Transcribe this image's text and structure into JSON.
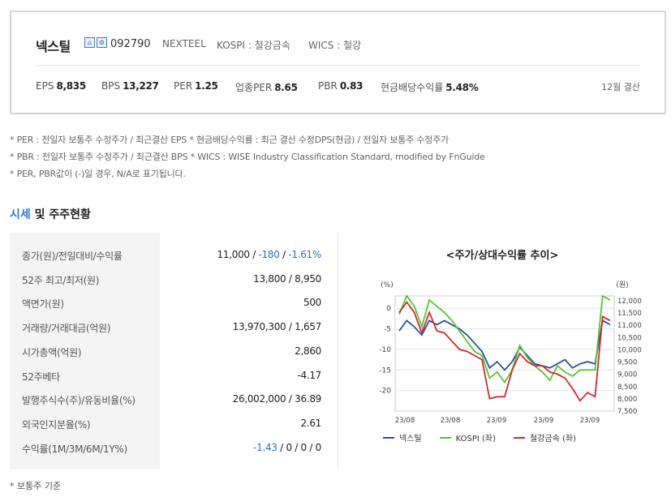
{
  "company": {
    "name": "넥스틸",
    "icons": [
      "building-icon",
      "settings-icon"
    ],
    "code": "092790",
    "english_name": "NEXTEEL",
    "market": "KOSPI : 철강금속",
    "wics": "WICS : 철강"
  },
  "metrics": [
    {
      "label": "EPS",
      "value": "8,835"
    },
    {
      "label": "BPS",
      "value": "13,227"
    },
    {
      "label": "PER",
      "value": "1.25"
    },
    {
      "label": "업종PER",
      "value": "8.65"
    },
    {
      "label": "PBR",
      "value": "0.83"
    },
    {
      "label": "현금배당수익률",
      "value": "5.48%"
    }
  ],
  "settlement": "12월 결산",
  "notes": [
    "* PER : 전일자 보통주 수정주가 / 최근결산 EPS * 현금배당수익률 : 최근 결산 수정DPS(현금) / 전일자 보통주 수정주가",
    "* PBR : 전일자 보통주 수정주가 / 최근결산 BPS * WICS : WISE Industry Classification Standard, modified by FnGuide",
    "* PER, PBR값이 (-)일 경우, N/A로 표기됩니다."
  ],
  "section": {
    "accent": "시세",
    "rest": " 및 주주현황"
  },
  "table_rows": [
    {
      "label": "종가(원)/전일대비/수익률",
      "parts": [
        {
          "t": "11,000 / ",
          "c": ""
        },
        {
          "t": "-180",
          "c": "blue"
        },
        {
          "t": " / ",
          "c": ""
        },
        {
          "t": "-1.61%",
          "c": "blue"
        }
      ]
    },
    {
      "label": "52주 최고/최저(원)",
      "parts": [
        {
          "t": "13,800 / 8,950",
          "c": ""
        }
      ]
    },
    {
      "label": "액면가(원)",
      "parts": [
        {
          "t": "500",
          "c": ""
        }
      ]
    },
    {
      "label": "거래량/거래대금(억원)",
      "parts": [
        {
          "t": "13,970,300 / 1,657",
          "c": ""
        }
      ]
    },
    {
      "label": "시가총액(억원)",
      "parts": [
        {
          "t": "2,860",
          "c": ""
        }
      ]
    },
    {
      "label": "52주베타",
      "parts": [
        {
          "t": "-4.17",
          "c": ""
        }
      ]
    },
    {
      "label": "발행주식수(주)/유동비율(%)",
      "parts": [
        {
          "t": "26,002,000 / 36.89",
          "c": ""
        }
      ]
    },
    {
      "label": "외국인지분율(%)",
      "parts": [
        {
          "t": "2.61",
          "c": ""
        }
      ]
    },
    {
      "label": "수익률(1M/3M/6M/1Y%)",
      "parts": [
        {
          "t": "-1.43",
          "c": "blue"
        },
        {
          "t": " / 0 / 0 / 0",
          "c": ""
        }
      ]
    }
  ],
  "chart_data": {
    "type": "line",
    "title": "<주가/상대수익률 추이>",
    "left_unit": "(%)",
    "right_unit": "(원)",
    "x_ticks": [
      "23/08",
      "23/08",
      "23/09",
      "23/09",
      "23/09"
    ],
    "ylim_left": [
      -25,
      3
    ],
    "yticks_left": [
      0,
      -5,
      -10,
      -15,
      -20
    ],
    "ylim_right": [
      7500,
      12000
    ],
    "yticks_right": [
      "12,000",
      "11,500",
      "11,000",
      "10,500",
      "10,000",
      "9,500",
      "9,000",
      "8,500",
      "8,000",
      "7,500"
    ],
    "series": [
      {
        "name": "넥스틸",
        "color": "#2b4fa0",
        "axis": "left",
        "values": [
          -5.5,
          -3,
          -4.5,
          -6.5,
          -3,
          -4,
          -3,
          -4,
          -5,
          -6.5,
          -8.5,
          -10.5,
          -14.5,
          -13,
          -15,
          -13,
          -9.5,
          -11.5,
          -13.5,
          -14,
          -14.5,
          -13.5,
          -12.5,
          -14.5,
          -13.5,
          -13,
          -13.5,
          -3,
          -4
        ]
      },
      {
        "name": "KOSPI (좌)",
        "color": "#5cc238",
        "axis": "left",
        "values": [
          -1.5,
          3,
          0.5,
          -4.5,
          2,
          0.5,
          -1,
          -3,
          -5.5,
          -8,
          -10.5,
          -11.5,
          -17,
          -15.5,
          -18,
          -15,
          -9,
          -12,
          -14,
          -15.5,
          -17.5,
          -14,
          -15.5,
          -16.5,
          -15,
          -15,
          -15,
          3,
          2
        ]
      },
      {
        "name": "철강금속 (좌)",
        "color": "#c9302c",
        "axis": "left",
        "values": [
          -1,
          1.5,
          -1,
          -6,
          -1,
          -5.5,
          -6,
          -8,
          -10,
          -10.5,
          -11.5,
          -12.5,
          -22,
          -21.5,
          -21.5,
          -15,
          -11,
          -13,
          -14,
          -14,
          -15.5,
          -16,
          -17,
          -19.5,
          -22.5,
          -20.5,
          -21.5,
          -2,
          -3
        ]
      }
    ]
  },
  "footnote": "* 보통주 기준"
}
